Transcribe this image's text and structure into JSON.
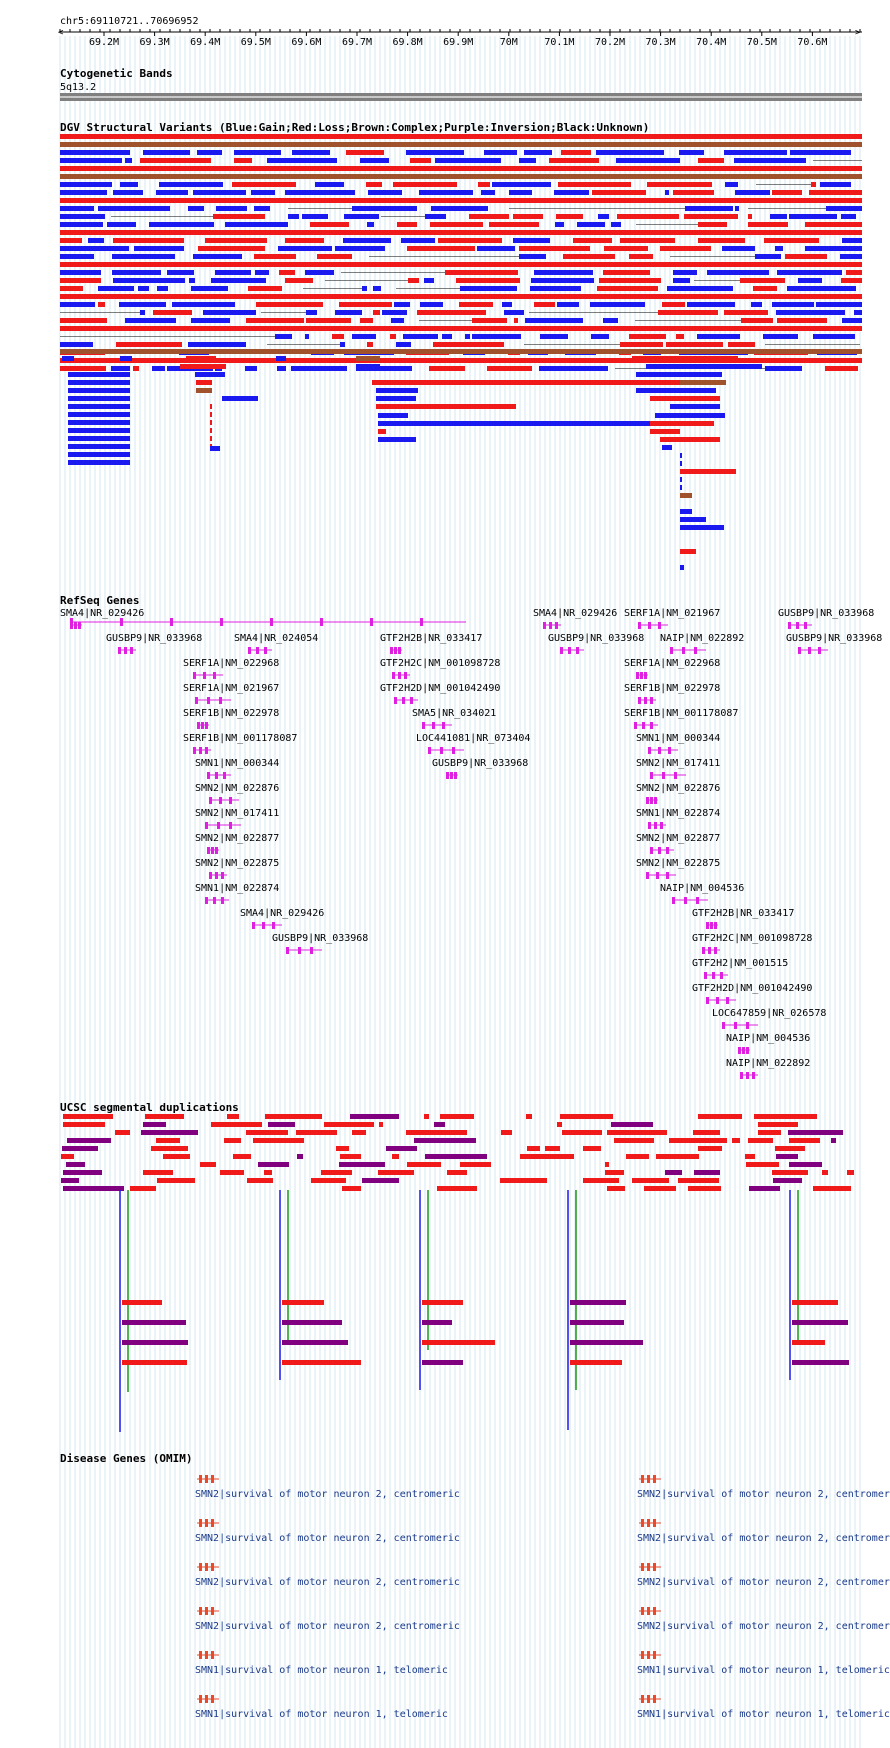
{
  "ruler": {
    "position": "chr5:69110721..70696952",
    "ticks": [
      "69.2M",
      "69.3M",
      "69.4M",
      "69.5M",
      "69.6M",
      "69.7M",
      "69.8M",
      "69.9M",
      "70M",
      "70.1M",
      "70.2M",
      "70.3M",
      "70.4M",
      "70.5M",
      "70.6M"
    ]
  },
  "cytoband": {
    "title": "Cytogenetic Bands",
    "band": "5q13.2"
  },
  "dgv": {
    "title": "DGV Structural Variants (Blue:Gain;Red:Loss;Brown:Complex;Purple:Inversion;Black:Unknown)"
  },
  "colors": {
    "gain": "#1a1af0",
    "loss": "#f01a1a",
    "complex": "#a0522d",
    "inversion": "#800080",
    "gene": "#e020e0",
    "grid": "#b9d7e6",
    "segdup_green": "#1a9a1a",
    "omim": "#e84a2a",
    "omim_text": "#1a3a8a"
  },
  "refseq": {
    "title": "RefSeq Genes",
    "genes": [
      "SMA4|NR_029426",
      "GUSBP9|NR_033968",
      "SMA4|NR_024054",
      "SERF1A|NM_022968",
      "SERF1A|NM_021967",
      "SERF1B|NM_022978",
      "SERF1B|NM_001178087",
      "SMN1|NM_000344",
      "SMN2|NM_022876",
      "SMN2|NM_017411",
      "SMN2|NM_022877",
      "SMN2|NM_022875",
      "SMN1|NM_022874",
      "SMA4|NR_029426",
      "GUSBP9|NR_033968",
      "GTF2H2B|NR_033417",
      "GTF2H2C|NM_001098728",
      "GTF2H2D|NM_001042490",
      "SMA5|NR_034021",
      "LOC441081|NR_073404",
      "GUSBP9|NR_033968",
      "SMA4|NR_029426",
      "GUSBP9|NR_033968",
      "SERF1A|NM_021967",
      "NAIP|NM_022892",
      "SERF1A|NM_022968",
      "SERF1B|NM_022978",
      "SERF1B|NM_001178087",
      "SMN1|NM_000344",
      "SMN2|NM_017411",
      "SMN2|NM_022876",
      "SMN1|NM_022874",
      "SMN2|NM_022877",
      "SMN2|NM_022875",
      "NAIP|NM_004536",
      "GTF2H2B|NR_033417",
      "GTF2H2C|NM_001098728",
      "GTF2H2|NM_001515",
      "GTF2H2D|NM_001042490",
      "LOC647859|NR_026578",
      "NAIP|NM_004536",
      "NAIP|NM_022892",
      "GUSBP9|NR_033968",
      "GUSBP9|NR_033968"
    ]
  },
  "segdup": {
    "title": "UCSC segmental duplications"
  },
  "omim": {
    "title": "Disease Genes (OMIM)",
    "entries": [
      "SMN2|survival of motor neuron 2, centromeric",
      "SMN2|survival of motor neuron 2, centromeric",
      "SMN2|survival of motor neuron 2, centromeric",
      "SMN2|survival of motor neuron 2, centromeric",
      "SMN1|survival of motor neuron 1, telomeric",
      "SMN1|survival of motor neuron 1, telomeric",
      "SMN2|survival of motor neuron 2, centromer",
      "SMN2|survival of motor neuron 2, centromer",
      "SMN2|survival of motor neuron 2, centromer",
      "SMN2|survival of motor neuron 2, centromer",
      "SMN1|survival of motor neuron 1, telomeric",
      "SMN1|survival of motor neuron 1, telomeric"
    ]
  }
}
